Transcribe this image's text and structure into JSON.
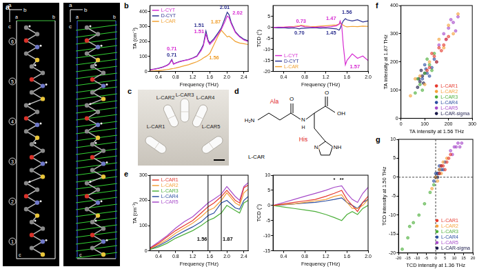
{
  "panel_labels": [
    "a",
    "b",
    "c",
    "d",
    "e",
    "f",
    "g"
  ],
  "structure_a": {
    "axes": [
      "a",
      "b",
      "c"
    ],
    "box_labels": [
      "a",
      "b",
      "c"
    ],
    "residues": [
      "1",
      "2",
      "3",
      "4",
      "5",
      "6"
    ]
  },
  "photo_c": {
    "labels": [
      "L-CAR1",
      "L-CAR2",
      "L-CAR3",
      "L-CAR4",
      "L-CAR5"
    ]
  },
  "molecule_d": {
    "name": "L-CAR",
    "residues": [
      "Ala",
      "His"
    ],
    "atoms": [
      "H₂N",
      "O",
      "N",
      "H",
      "O",
      "OH",
      "N",
      "NH"
    ]
  },
  "chart_data": [
    {
      "type": "line",
      "xlabel": "Frequency (THz)",
      "ylabel": "TA (cm⁻¹)",
      "x": [
        0.2,
        0.3,
        0.4,
        0.5,
        0.6,
        0.65,
        0.71,
        0.75,
        0.8,
        0.9,
        1.0,
        1.1,
        1.2,
        1.3,
        1.4,
        1.45,
        1.51,
        1.56,
        1.6,
        1.7,
        1.8,
        1.87,
        1.95,
        2.01,
        2.05,
        2.1,
        2.2,
        2.3,
        2.4,
        2.5
      ],
      "xlim": [
        0.2,
        2.5
      ],
      "xticks": [
        0.4,
        0.8,
        1.2,
        1.6,
        {
          "value": 2,
          "label": "2.0"
        },
        2.4
      ],
      "ylim": [
        0,
        440
      ],
      "yticks": [
        0,
        100,
        200,
        300,
        400
      ],
      "grid": false,
      "legend": "upper left",
      "series": [
        {
          "name": "L-CYT",
          "color": "#d62ad1",
          "values": [
            10,
            15,
            20,
            28,
            40,
            50,
            75,
            48,
            55,
            65,
            72,
            78,
            88,
            100,
            140,
            170,
            250,
            200,
            180,
            210,
            250,
            280,
            330,
            370,
            360,
            320,
            260,
            230,
            210,
            200
          ]
        },
        {
          "name": "D-CYT",
          "color": "#2b2f8f",
          "values": [
            12,
            16,
            22,
            30,
            42,
            52,
            80,
            50,
            57,
            67,
            74,
            80,
            90,
            104,
            150,
            180,
            270,
            210,
            190,
            220,
            260,
            290,
            350,
            395,
            380,
            330,
            265,
            235,
            215,
            205
          ]
        },
        {
          "name": "L-CAR",
          "color": "#f0a030",
          "values": [
            2,
            4,
            6,
            9,
            13,
            15,
            18,
            20,
            23,
            30,
            38,
            45,
            55,
            65,
            80,
            90,
            100,
            110,
            120,
            180,
            240,
            275,
            250,
            230,
            235,
            225,
            200,
            190,
            185,
            180
          ]
        }
      ],
      "annotations": [
        {
          "text": "0.71",
          "x": 0.71,
          "y": 150,
          "color": "#d62ad1"
        },
        {
          "text": "0.71",
          "x": 0.71,
          "y": 108,
          "color": "#2b2f8f"
        },
        {
          "text": "1.51",
          "x": 1.35,
          "y": 305,
          "color": "#2b2f8f"
        },
        {
          "text": "1.51",
          "x": 1.35,
          "y": 265,
          "color": "#d62ad1"
        },
        {
          "text": "1.87",
          "x": 1.74,
          "y": 330,
          "color": "#f0a030"
        },
        {
          "text": "1.56",
          "x": 1.7,
          "y": 90,
          "color": "#f0a030"
        },
        {
          "text": "2.01",
          "x": 1.95,
          "y": 425,
          "color": "#2b2f8f"
        },
        {
          "text": "2.02",
          "x": 2.25,
          "y": 390,
          "color": "#d62ad1"
        }
      ]
    },
    {
      "type": "line",
      "xlabel": "Frequency (THz)",
      "ylabel": "TCD (°)",
      "x": [
        0.2,
        0.3,
        0.4,
        0.5,
        0.6,
        0.7,
        0.73,
        0.8,
        0.9,
        1.0,
        1.1,
        1.2,
        1.3,
        1.4,
        1.45,
        1.47,
        1.5,
        1.53,
        1.57,
        1.6,
        1.7,
        1.8,
        1.9,
        2.0
      ],
      "xlim": [
        0.2,
        2.0
      ],
      "xticks": [
        0.4,
        0.8,
        1.2,
        1.6,
        {
          "value": 2,
          "label": "2.0"
        }
      ],
      "ylim": [
        -20,
        10
      ],
      "yticks": [
        -20,
        -15,
        -10,
        -5,
        0,
        5
      ],
      "grid": false,
      "legend": "lower left",
      "series": [
        {
          "name": "L-CYT",
          "color": "#d62ad1",
          "values": [
            0,
            0.2,
            0.1,
            0.3,
            0.2,
            0.5,
            0.8,
            0.3,
            0.2,
            0.1,
            0.3,
            0.2,
            0.4,
            0.8,
            1.5,
            3,
            1,
            -8,
            -17,
            -15,
            -12,
            -14,
            -13,
            -15
          ]
        },
        {
          "name": "D-CYT",
          "color": "#2b2f8f",
          "values": [
            0,
            -0.2,
            -0.1,
            -0.3,
            -0.2,
            -0.6,
            -0.4,
            -0.3,
            -0.2,
            -0.1,
            -0.3,
            -0.2,
            -0.4,
            -0.6,
            -1.2,
            -0.5,
            1.5,
            3,
            4,
            3.5,
            3,
            3.5,
            2.5,
            3
          ]
        },
        {
          "name": "L-CAR",
          "color": "#f0a030",
          "values": [
            0,
            0.1,
            0.2,
            0.3,
            0.5,
            0.8,
            1,
            0.7,
            0.5,
            0.4,
            0.6,
            0.8,
            1,
            1.2,
            1.5,
            2,
            1.5,
            1,
            0.5,
            0.3,
            0.5,
            0.4,
            0.6,
            0.5
          ]
        }
      ],
      "annotations": [
        {
          "text": "0.73",
          "x": 0.73,
          "y": 2.8,
          "color": "#d62ad1"
        },
        {
          "text": "0.70",
          "x": 0.7,
          "y": -2.5,
          "color": "#2b2f8f"
        },
        {
          "text": "1.47",
          "x": 1.3,
          "y": 4,
          "color": "#d62ad1"
        },
        {
          "text": "1.45",
          "x": 1.3,
          "y": -2.5,
          "color": "#2b2f8f"
        },
        {
          "text": "1.56",
          "x": 1.6,
          "y": 7,
          "color": "#2b2f8f"
        },
        {
          "text": "1.57",
          "x": 1.75,
          "y": -18,
          "color": "#d62ad1"
        }
      ]
    },
    {
      "type": "scatter",
      "xlabel": "TA intensity at 1.56 THz",
      "ylabel": "TA intensity at 1.87 THz",
      "xlim": [
        0,
        300
      ],
      "xticks": [
        0,
        100,
        200,
        300
      ],
      "ylim": [
        0,
        400
      ],
      "yticks": [
        0,
        100,
        200,
        300,
        400
      ],
      "grid": false,
      "legend": "lower right",
      "series": [
        {
          "name": "L-CAR1",
          "color": "#e63a2e",
          "x": [
            120,
            140,
            160,
            180,
            200,
            150,
            170,
            130,
            190,
            110
          ],
          "values": [
            180,
            220,
            250,
            260,
            290,
            200,
            240,
            230,
            280,
            170
          ]
        },
        {
          "name": "L-CAR2",
          "color": "#f5a13a",
          "x": [
            40,
            80,
            120,
            160,
            200,
            240,
            100,
            180,
            60,
            220
          ],
          "values": [
            80,
            150,
            200,
            280,
            330,
            370,
            120,
            250,
            140,
            300
          ]
        },
        {
          "name": "L-CAR3",
          "color": "#4caf3a",
          "x": [
            60,
            80,
            100,
            120,
            140,
            70,
            90,
            110,
            130
          ],
          "values": [
            90,
            120,
            160,
            190,
            230,
            140,
            100,
            210,
            170
          ]
        },
        {
          "name": "L-CAR4",
          "color": "#2b4ea0",
          "x": [
            90,
            110,
            130,
            150,
            100,
            120,
            140,
            105
          ],
          "values": [
            140,
            160,
            180,
            200,
            190,
            150,
            210,
            175
          ]
        },
        {
          "name": "L-CAR5",
          "color": "#a64ac9",
          "x": [
            160,
            180,
            200,
            220,
            240,
            190,
            210,
            230
          ],
          "values": [
            260,
            300,
            320,
            340,
            360,
            280,
            350,
            310
          ]
        },
        {
          "name": "L-CAR-sigma",
          "color": "#1a1a4a",
          "x": [
            70,
            80,
            90,
            100,
            75,
            95,
            85
          ],
          "values": [
            110,
            130,
            150,
            160,
            140,
            125,
            170
          ]
        }
      ]
    },
    {
      "type": "line",
      "xlabel": "Frequency (THz)",
      "ylabel": "TA (cm⁻¹)",
      "x": [
        0.2,
        0.4,
        0.6,
        0.8,
        1.0,
        1.2,
        1.4,
        1.56,
        1.7,
        1.87,
        2.0,
        2.1,
        2.2,
        2.3,
        2.4,
        2.5
      ],
      "xlim": [
        0.2,
        2.5
      ],
      "xticks": [
        0.4,
        0.8,
        1.2,
        1.6,
        {
          "value": 2,
          "label": "2.0"
        },
        2.4
      ],
      "ylim": [
        0,
        300
      ],
      "yticks": [
        0,
        100,
        200,
        300
      ],
      "grid": false,
      "legend": "upper left",
      "series": [
        {
          "name": "L-CAR1",
          "color": "#e63a2e",
          "values": [
            10,
            30,
            55,
            80,
            100,
            120,
            150,
            175,
            190,
            215,
            240,
            220,
            200,
            190,
            250,
            260
          ]
        },
        {
          "name": "L-CAR2",
          "color": "#f5a13a",
          "values": [
            8,
            25,
            45,
            70,
            90,
            110,
            135,
            160,
            170,
            200,
            230,
            210,
            190,
            180,
            230,
            245
          ]
        },
        {
          "name": "L-CAR3",
          "color": "#4caf3a",
          "values": [
            5,
            15,
            30,
            50,
            65,
            80,
            100,
            120,
            130,
            150,
            180,
            170,
            160,
            150,
            190,
            200
          ]
        },
        {
          "name": "L-CAR4",
          "color": "#2b4ea0",
          "values": [
            6,
            20,
            38,
            60,
            78,
            95,
            115,
            140,
            150,
            190,
            200,
            185,
            170,
            165,
            200,
            215
          ]
        },
        {
          "name": "L-CAR5",
          "color": "#a64ac9",
          "values": [
            12,
            35,
            60,
            90,
            115,
            135,
            165,
            190,
            205,
            225,
            255,
            235,
            215,
            200,
            255,
            270
          ]
        }
      ],
      "marker_lines": [
        1.56,
        1.87
      ],
      "annotations": [
        {
          "text": "1.56",
          "x": 1.42,
          "y": 45,
          "color": "#000000"
        },
        {
          "text": "1.87",
          "x": 2.02,
          "y": 45,
          "color": "#000000"
        }
      ]
    },
    {
      "type": "line",
      "xlabel": "Frequency (THz)",
      "ylabel": "TCD (°)",
      "x": [
        0.2,
        0.4,
        0.6,
        0.8,
        1.0,
        1.2,
        1.36,
        1.5,
        1.6,
        1.7,
        1.8,
        1.9,
        2.0
      ],
      "xlim": [
        0.2,
        2.0
      ],
      "xticks": [
        0.4,
        0.8,
        1.2,
        1.6,
        {
          "value": 2,
          "label": "2.0"
        }
      ],
      "ylim": [
        -15,
        10
      ],
      "yticks": [
        -15,
        -10,
        -5,
        0,
        5,
        10
      ],
      "grid": false,
      "series": [
        {
          "name": "L-CAR1",
          "color": "#e63a2e",
          "values": [
            0,
            0.5,
            1,
            1.5,
            2,
            3,
            4,
            5,
            2,
            0,
            -2,
            1,
            3
          ]
        },
        {
          "name": "L-CAR2",
          "color": "#f5a13a",
          "values": [
            0,
            0.3,
            0.5,
            1,
            1.5,
            2,
            3,
            3.5,
            1,
            -1,
            -1,
            0,
            2
          ]
        },
        {
          "name": "L-CAR3",
          "color": "#4caf3a",
          "values": [
            0,
            -0.5,
            -1,
            -1.5,
            -2,
            -3,
            -4,
            -5,
            -3,
            -2,
            -3,
            -1,
            0
          ]
        },
        {
          "name": "L-CAR4",
          "color": "#2b4ea0",
          "values": [
            0,
            0.2,
            0.5,
            0.8,
            1,
            1.5,
            2,
            2.5,
            1,
            0,
            -1,
            1,
            2
          ]
        },
        {
          "name": "L-CAR5",
          "color": "#a64ac9",
          "values": [
            0,
            1,
            2,
            3,
            4,
            5,
            6,
            6.5,
            4,
            2,
            1,
            4,
            6
          ]
        }
      ],
      "annotations": [
        {
          "text": "*",
          "x": 1.36,
          "y": 8.5,
          "color": "#000000"
        },
        {
          "text": "**",
          "x": 1.5,
          "y": 8.5,
          "color": "#000000"
        }
      ]
    },
    {
      "type": "scatter",
      "xlabel": "TCD intensity at 1.36 THz",
      "ylabel": "TCD intensity at 1.50 THz",
      "xlim": [
        -20,
        20
      ],
      "xticks": [
        -20,
        -15,
        -10,
        -5,
        0,
        5,
        10,
        15,
        20
      ],
      "ylim": [
        -20,
        10
      ],
      "yticks": [
        -20,
        -15,
        -10,
        -5,
        0,
        5,
        10
      ],
      "grid": false,
      "legend": "lower right",
      "reference_lines": {
        "x": [
          0
        ],
        "y": [
          0
        ]
      },
      "series": [
        {
          "name": "L-CAR1",
          "color": "#e63a2e",
          "x": [
            2,
            4,
            6,
            8,
            3,
            5,
            7
          ],
          "values": [
            1,
            3,
            4,
            6,
            3,
            2,
            5
          ]
        },
        {
          "name": "L-CAR2",
          "color": "#f5a13a",
          "x": [
            -2,
            0,
            2,
            4,
            6,
            1,
            3
          ],
          "values": [
            -3,
            0,
            2,
            4,
            5,
            -1,
            1
          ]
        },
        {
          "name": "L-CAR3",
          "color": "#4caf3a",
          "x": [
            -18,
            -15,
            -12,
            -9,
            -6,
            -3,
            -1,
            -14
          ],
          "values": [
            -19,
            -16,
            -12,
            -10,
            -7,
            -4,
            -2,
            -13
          ]
        },
        {
          "name": "L-CAR4",
          "color": "#2b4ea0",
          "x": [
            -1,
            1,
            3,
            5,
            2,
            0,
            4
          ],
          "values": [
            -1,
            1,
            2,
            4,
            3,
            1,
            2
          ]
        },
        {
          "name": "L-CAR5",
          "color": "#a64ac9",
          "x": [
            8,
            10,
            12,
            14,
            9,
            11,
            13
          ],
          "values": [
            7,
            8,
            9,
            9,
            6,
            8,
            8
          ]
        },
        {
          "name": "L-CAR-sigma",
          "color": "#1a1a4a",
          "x": [
            0,
            1,
            2,
            3,
            1,
            2
          ],
          "values": [
            0,
            1,
            1,
            3,
            0,
            2
          ]
        }
      ]
    }
  ]
}
